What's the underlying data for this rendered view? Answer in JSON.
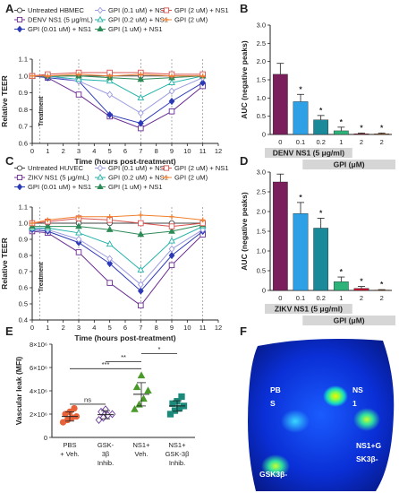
{
  "panel_labels": {
    "A": "A",
    "B": "B",
    "C": "C",
    "D": "D",
    "E": "E",
    "F": "F"
  },
  "chart_data": [
    {
      "id": "A",
      "type": "line",
      "xlabel": "Time (hours post-treatment)",
      "ylabel": "Relative TEER",
      "x": [
        0,
        1,
        3,
        5,
        7,
        9,
        11
      ],
      "x_ticks": [
        "0",
        "1",
        "2",
        "3",
        "4",
        "5",
        "6",
        "7",
        "8",
        "9",
        "10",
        "11",
        "12"
      ],
      "y_ticks": [
        "0.6",
        "0.7",
        "0.8",
        "0.9",
        "1.0",
        "1.1"
      ],
      "xlim": [
        0,
        12
      ],
      "ylim": [
        0.6,
        1.1
      ],
      "vlines": [
        0.5,
        3,
        7,
        9,
        11
      ],
      "annotation": "Treatment",
      "series": [
        {
          "name": "Untreated HBMEC",
          "color": "#444444",
          "marker": "circle-open",
          "values": [
            1.0,
            1.0,
            1.0,
            1.0,
            1.0,
            1.0,
            1.0
          ]
        },
        {
          "name": "DENV NS1 (5 μg/mL)",
          "color": "#6a2c91",
          "marker": "square-open",
          "values": [
            1.0,
            0.99,
            0.89,
            0.76,
            0.69,
            0.79,
            0.94
          ]
        },
        {
          "name": "GPI (0.01 uM) + NS1",
          "color": "#2d3ab5",
          "marker": "diamond",
          "values": [
            1.0,
            0.99,
            0.97,
            0.77,
            0.72,
            0.85,
            0.96
          ]
        },
        {
          "name": "GPI (0.1 uM) + NS1",
          "color": "#9b9be0",
          "marker": "diamond-open",
          "values": [
            1.0,
            1.0,
            0.97,
            0.89,
            0.78,
            0.91,
            0.99
          ]
        },
        {
          "name": "GPI (0.2 uM) + NS1",
          "color": "#20b2aa",
          "marker": "triangle-open",
          "values": [
            1.0,
            1.0,
            0.98,
            0.97,
            0.87,
            0.96,
            1.0
          ]
        },
        {
          "name": "GPI (1 uM) + NS1",
          "color": "#2e8b57",
          "marker": "triangle",
          "values": [
            1.0,
            1.0,
            1.0,
            0.99,
            0.98,
            0.99,
            1.0
          ]
        },
        {
          "name": "GPI (2 uM) + NS1",
          "color": "#d9534f",
          "marker": "square-open",
          "values": [
            1.0,
            1.01,
            1.02,
            1.02,
            1.02,
            1.01,
            1.01
          ]
        },
        {
          "name": "GPI (2 uM)",
          "color": "#f08030",
          "marker": "plus",
          "values": [
            1.0,
            1.0,
            1.01,
            1.0,
            1.01,
            1.0,
            1.0
          ]
        }
      ]
    },
    {
      "id": "B",
      "type": "bar",
      "ylabel": "AUC (negative peaks)",
      "categories": [
        "0",
        "0.1",
        "0.2",
        "1",
        "2",
        "2"
      ],
      "values": [
        1.65,
        0.9,
        0.4,
        0.1,
        0.02,
        0.02
      ],
      "errors": [
        0.3,
        0.2,
        0.12,
        0.1,
        0.02,
        0.02
      ],
      "colors": [
        "#7a1f5c",
        "#2ea0e6",
        "#1a8a9a",
        "#2db37a",
        "#c8102e",
        "#e07020"
      ],
      "significance": [
        "",
        "*",
        "*",
        "*",
        "*",
        "*"
      ],
      "y_ticks": [
        "0",
        "0.5",
        "1.0",
        "1.5",
        "2.0",
        "2.5",
        "3.0"
      ],
      "ylim": [
        0,
        3.0
      ],
      "group_label": "DENV NS1 (5 μg/ml)",
      "sub_label": "GPI (μM)"
    },
    {
      "id": "C",
      "type": "line",
      "xlabel": "Time (hours post-treatment)",
      "ylabel": "Relative TEER",
      "x": [
        0,
        1,
        3,
        5,
        7,
        9,
        11
      ],
      "x_ticks": [
        "0",
        "1",
        "2",
        "3",
        "4",
        "5",
        "6",
        "7",
        "8",
        "9",
        "10",
        "11",
        "12"
      ],
      "y_ticks": [
        "0.4",
        "0.5",
        "0.6",
        "0.7",
        "0.8",
        "0.9",
        "1.0",
        "1.1"
      ],
      "xlim": [
        0,
        12
      ],
      "ylim": [
        0.4,
        1.1
      ],
      "vlines": [
        0.5,
        3,
        7,
        9,
        11
      ],
      "annotation": "Treatment",
      "series": [
        {
          "name": "Untreated HUVEC",
          "color": "#444444",
          "marker": "circle-open",
          "values": [
            1.0,
            1.0,
            1.0,
            1.0,
            1.0,
            1.0,
            1.0
          ]
        },
        {
          "name": "ZIKV NS1 (5 μg/mL)",
          "color": "#6a2c91",
          "marker": "square-open",
          "values": [
            0.95,
            0.94,
            0.82,
            0.63,
            0.49,
            0.74,
            0.93
          ]
        },
        {
          "name": "GPI (0.01 uM) + NS1",
          "color": "#2d3ab5",
          "marker": "diamond",
          "values": [
            0.96,
            0.95,
            0.88,
            0.75,
            0.58,
            0.8,
            0.95
          ]
        },
        {
          "name": "GPI (0.1 uM) + NS1",
          "color": "#9b9be0",
          "marker": "diamond-open",
          "values": [
            0.97,
            0.96,
            0.9,
            0.78,
            0.62,
            0.84,
            0.96
          ]
        },
        {
          "name": "GPI (0.2 uM) + NS1",
          "color": "#20b2aa",
          "marker": "triangle-open",
          "values": [
            0.97,
            0.97,
            0.94,
            0.87,
            0.71,
            0.89,
            0.98
          ]
        },
        {
          "name": "GPI (1 uM) + NS1",
          "color": "#2e8b57",
          "marker": "triangle",
          "values": [
            0.98,
            0.98,
            0.98,
            0.96,
            0.93,
            0.95,
            0.99
          ]
        },
        {
          "name": "GPI (2 uM) + NS1",
          "color": "#d9534f",
          "marker": "square-open",
          "values": [
            1.0,
            1.01,
            1.03,
            1.02,
            1.0,
            0.98,
            1.0
          ]
        },
        {
          "name": "GPI (2 uM)",
          "color": "#f08030",
          "marker": "plus",
          "values": [
            1.0,
            1.02,
            1.04,
            1.04,
            1.05,
            1.04,
            1.02
          ]
        }
      ]
    },
    {
      "id": "D",
      "type": "bar",
      "ylabel": "AUC (negative peaks)",
      "categories": [
        "0",
        "0.1",
        "0.2",
        "1",
        "2",
        "2"
      ],
      "values": [
        2.75,
        1.95,
        1.58,
        0.22,
        0.05,
        0.01
      ],
      "errors": [
        0.2,
        0.28,
        0.25,
        0.12,
        0.05,
        0.01
      ],
      "colors": [
        "#7a1f5c",
        "#2ea0e6",
        "#1a8a9a",
        "#2db37a",
        "#c8102e",
        "#e07020"
      ],
      "significance": [
        "",
        "*",
        "*",
        "*",
        "*",
        "*"
      ],
      "y_ticks": [
        "0",
        "0.5",
        "1.0",
        "1.5",
        "2.0",
        "2.5",
        "3.0"
      ],
      "ylim": [
        0,
        3.0
      ],
      "group_label": "ZIKV NS1 (5 μg/ml)",
      "sub_label": "GPI (μM)"
    },
    {
      "id": "E",
      "type": "scatter",
      "ylabel": "Vascular leak (MFI)",
      "y_ticks": [
        "0",
        "2×10⁶",
        "4×10⁶",
        "6×10⁶",
        "8×10⁶"
      ],
      "ylim": [
        0,
        8000000
      ],
      "groups": [
        {
          "name": "PBS + Veh.",
          "line1": "PBS",
          "line2": "+ Veh.",
          "line3": "",
          "color": "#e8633a",
          "marker": "circle",
          "values": [
            1300000,
            1500000,
            1700000,
            1800000,
            2000000,
            2200000,
            2500000
          ],
          "mean": 1800000,
          "sd": 400000
        },
        {
          "name": "GSK-3β Inhib.",
          "line1": "GSK-",
          "line2": "3β",
          "line3": "Inhib.",
          "color": "#6a3d9a",
          "marker": "diamond-open",
          "values": [
            1500000,
            1700000,
            1900000,
            2000000,
            2200000,
            2400000
          ],
          "mean": 1950000,
          "sd": 350000
        },
        {
          "name": "NS1+ Veh.",
          "line1": "NS1+",
          "line2": "Veh.",
          "line3": "",
          "color": "#4a9a2a",
          "marker": "triangle",
          "values": [
            2400000,
            2800000,
            3300000,
            4000000,
            4300000,
            5300000
          ],
          "mean": 3700000,
          "sd": 1000000
        },
        {
          "name": "NS1+ GSK-3β Inhib.",
          "line1": "NS1+",
          "line2": "GSK-3β",
          "line3": "Inhib.",
          "color": "#1b8a7a",
          "marker": "square",
          "values": [
            2000000,
            2300000,
            2500000,
            2700000,
            2900000,
            3100000,
            3500000
          ],
          "mean": 2700000,
          "sd": 450000
        }
      ],
      "significance": [
        {
          "from": 0,
          "to": 2,
          "label": "***",
          "y": 5900000
        },
        {
          "from": 1,
          "to": 2,
          "label": "**",
          "y": 6500000
        },
        {
          "from": 2,
          "to": 3,
          "label": "*",
          "y": 7200000
        },
        {
          "from": 0,
          "to": 1,
          "label": "ns",
          "y": 2850000
        }
      ]
    }
  ],
  "panel_f": {
    "labels": [
      {
        "text": "PB",
        "line2": "S"
      },
      {
        "text": "NS",
        "line2": "1"
      },
      {
        "text": "NS1+G",
        "line2": "SK3β-"
      },
      {
        "text": "GSK3β-",
        "line2": ""
      }
    ]
  }
}
